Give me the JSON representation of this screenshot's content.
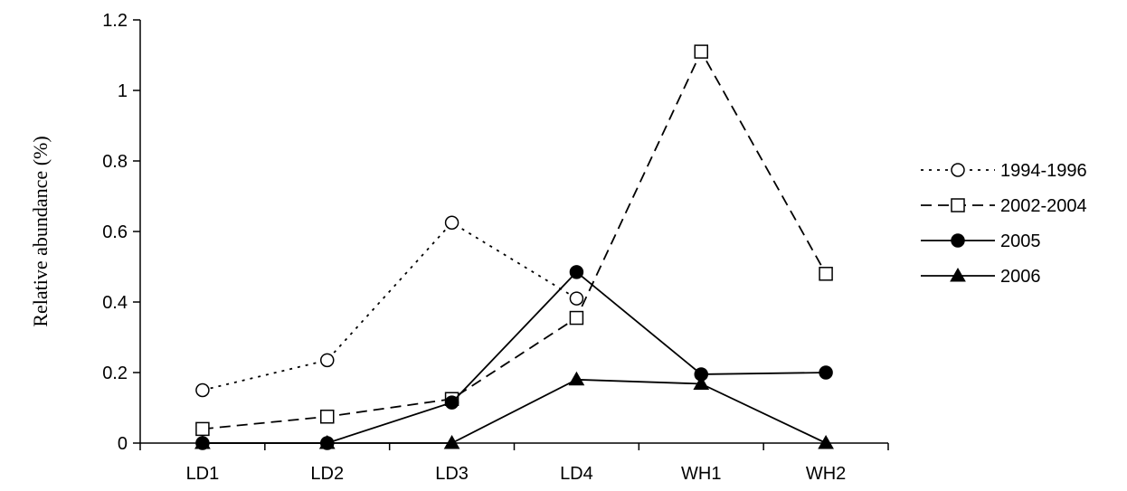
{
  "chart_data": {
    "type": "line",
    "title": "",
    "xlabel": "",
    "ylabel": "Relative abundance (%)",
    "categories": [
      "LD1",
      "LD2",
      "LD3",
      "LD4",
      "WH1",
      "WH2"
    ],
    "ylim": [
      0,
      1.2
    ],
    "yticks": [
      "0",
      "0.2",
      "0.4",
      "0.6",
      "0.8",
      "1",
      "1.2"
    ],
    "grid": false,
    "legend_position": "right",
    "series": [
      {
        "name": "1994-1996",
        "values": [
          0.15,
          0.235,
          0.625,
          0.41,
          null,
          null
        ],
        "line_style": "dotted",
        "marker": "circle-open",
        "color": "#000000"
      },
      {
        "name": "2002-2004",
        "values": [
          0.04,
          0.075,
          0.125,
          0.355,
          1.11,
          0.48
        ],
        "line_style": "dashed",
        "marker": "square-open",
        "color": "#000000"
      },
      {
        "name": "2005",
        "values": [
          0.0,
          0.0,
          0.115,
          0.485,
          0.195,
          0.2
        ],
        "line_style": "solid",
        "marker": "circle-filled",
        "color": "#000000"
      },
      {
        "name": "2006",
        "values": [
          0.0,
          0.0,
          0.0,
          0.18,
          0.168,
          0.0
        ],
        "line_style": "solid",
        "marker": "triangle-filled",
        "color": "#000000"
      }
    ]
  }
}
